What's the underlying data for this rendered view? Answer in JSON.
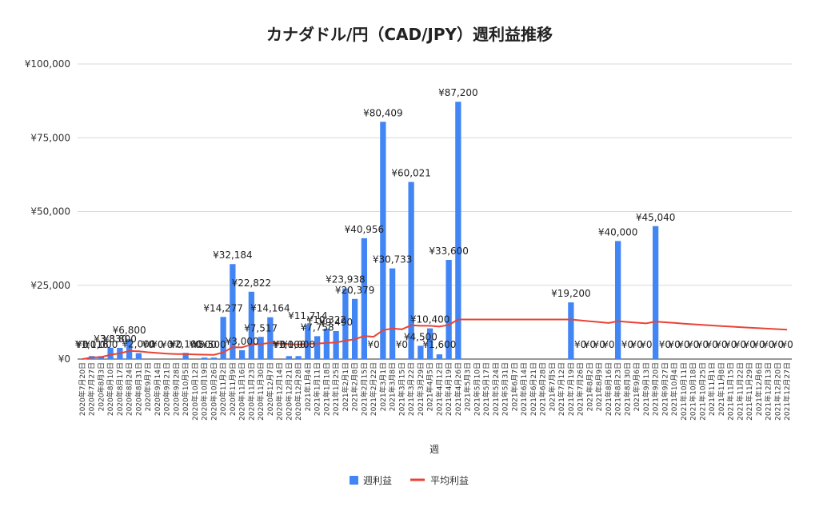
{
  "chart_data": {
    "type": "bar",
    "title": "カナダドル/円（CAD/JPY）週利益推移",
    "xlabel": "週",
    "ylabel": "",
    "ylim": [
      0,
      100000
    ],
    "yticks": [
      "¥0",
      "¥25,000",
      "¥50,000",
      "¥75,000",
      "¥100,000"
    ],
    "legend_position": "bottom",
    "grid": true,
    "colors": {
      "bar": "#4285f4",
      "line": "#ea4335"
    },
    "categories": [
      "2020年7月20日",
      "2020年7月27日",
      "2020年8月3日",
      "2020年8月10日",
      "2020年8月17日",
      "2020年8月24日",
      "2020年8月31日",
      "2020年9月7日",
      "2020年9月14日",
      "2020年9月21日",
      "2020年9月28日",
      "2020年10月5日",
      "2020年10月12日",
      "2020年10月19日",
      "2020年10月26日",
      "2020年11月2日",
      "2020年11月9日",
      "2020年11月16日",
      "2020年11月23日",
      "2020年11月30日",
      "2020年12月7日",
      "2020年12月14日",
      "2020年12月21日",
      "2020年12月28日",
      "2021年1月4日",
      "2021年1月11日",
      "2021年1月18日",
      "2021年1月25日",
      "2021年2月1日",
      "2021年2月8日",
      "2021年2月15日",
      "2021年2月22日",
      "2021年3月1日",
      "2021年3月8日",
      "2021年3月15日",
      "2021年3月22日",
      "2021年3月29日",
      "2021年4月5日",
      "2021年4月12日",
      "2021年4月19日",
      "2021年4月26日",
      "2021年5月3日",
      "2021年5月10日",
      "2021年5月17日",
      "2021年5月24日",
      "2021年5月31日",
      "2021年6月7日",
      "2021年6月14日",
      "2021年6月21日",
      "2021年6月28日",
      "2021年7月5日",
      "2021年7月12日",
      "2021年7月19日",
      "2021年7月26日",
      "2021年8月2日",
      "2021年8月9日",
      "2021年8月16日",
      "2021年8月23日",
      "2021年8月30日",
      "2021年9月6日",
      "2021年9月13日",
      "2021年9月20日",
      "2021年9月27日",
      "2021年10月4日",
      "2021年10月11日",
      "2021年10月18日",
      "2021年10月25日",
      "2021年11月1日",
      "2021年11月8日",
      "2021年11月15日",
      "2021年11月22日",
      "2021年11月29日",
      "2021年12月6日",
      "2021年12月13日",
      "2021年12月20日",
      "2021年12月27日"
    ],
    "series": [
      {
        "name": "週利益",
        "type": "bar",
        "values": [
          0,
          1016,
          1000,
          3830,
          3800,
          6800,
          2000,
          0,
          0,
          0,
          0,
          2100,
          0,
          500,
          500,
          14277,
          32184,
          3000,
          22822,
          7517,
          14164,
          0,
          1000,
          1000,
          11714,
          7758,
          10322,
          9490,
          23938,
          20379,
          40956,
          0,
          80409,
          30733,
          0,
          60021,
          4500,
          10400,
          1600,
          33600,
          87200,
          null,
          null,
          null,
          null,
          null,
          null,
          null,
          null,
          null,
          null,
          null,
          19200,
          0,
          0,
          0,
          0,
          40000,
          0,
          0,
          0,
          45040,
          0,
          0,
          0,
          0,
          0,
          0,
          0,
          0,
          0,
          0,
          0,
          0,
          0,
          0
        ],
        "labels": [
          "¥0",
          "¥1,016",
          "¥1,000",
          "¥3,830",
          "¥3,800",
          "¥6,800",
          "¥2,000",
          "¥0",
          "¥0",
          "¥0",
          "¥0",
          "¥2,100",
          "¥0",
          "¥500",
          "¥500",
          "¥14,277",
          "¥32,184",
          "¥3,000",
          "¥22,822",
          "¥7,517",
          "¥14,164",
          "¥0",
          "¥1,000",
          "¥1,000",
          "¥11,714",
          "¥7,758",
          "¥10,322",
          "¥9,490",
          "¥23,938",
          "¥20,379",
          "¥40,956",
          "¥0",
          "¥80,409",
          "¥30,733",
          "¥0",
          "¥60,021",
          "¥4,500",
          "¥10,400",
          "¥1,600",
          "¥33,600",
          "¥87,200",
          "",
          "",
          "",
          "",
          "",
          "",
          "",
          "",
          "",
          "",
          "",
          "¥19,200",
          "¥0",
          "¥0",
          "¥0",
          "¥0",
          "¥40,000",
          "¥0",
          "¥0",
          "¥0",
          "¥45,040",
          "¥0",
          "¥0",
          "¥0",
          "¥0",
          "¥0",
          "¥0",
          "¥0",
          "¥0",
          "¥0",
          "¥0",
          "¥0",
          "¥0",
          "¥0",
          "¥0"
        ]
      },
      {
        "name": "平均利益",
        "type": "line",
        "values": [
          0,
          508,
          672,
          1462,
          1930,
          2742,
          2636,
          2306,
          2050,
          1845,
          1677,
          1712,
          1580,
          1503,
          1436,
          2238,
          4000,
          3944,
          4934,
          5064,
          5497,
          5247,
          5062,
          4893,
          5167,
          5267,
          5454,
          5605,
          6238,
          6707,
          7812,
          7568,
          9774,
          10389,
          10084,
          11471,
          11268,
          11264,
          11015,
          11579,
          13416,
          13416,
          13416,
          13416,
          13416,
          13416,
          13416,
          13416,
          13416,
          13416,
          13416,
          13416,
          13428,
          13108,
          12803,
          12512,
          12234,
          12846,
          12578,
          12321,
          12075,
          12719,
          12477,
          12244,
          12018,
          11800,
          11590,
          11387,
          11191,
          11001,
          10817,
          10640,
          10468,
          10301,
          10140,
          9983
        ]
      }
    ]
  }
}
